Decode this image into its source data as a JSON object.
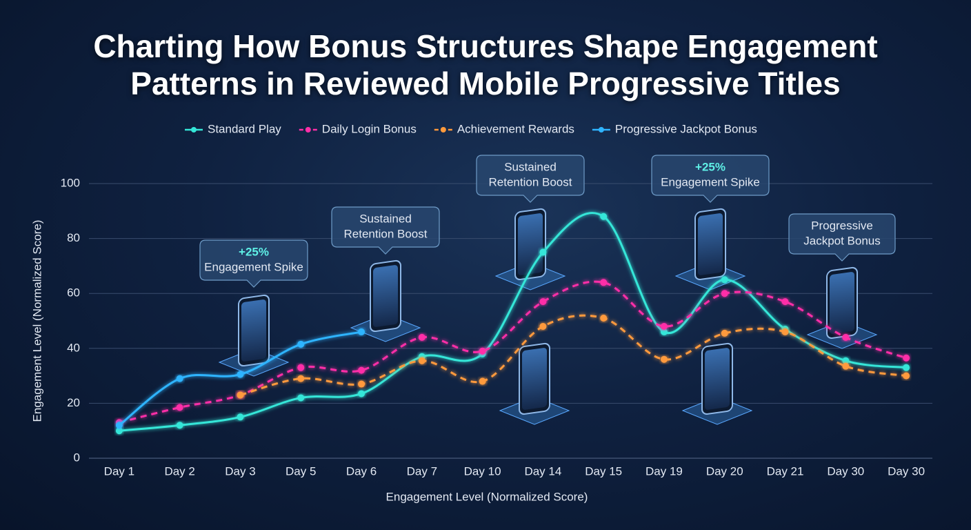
{
  "chart_data": {
    "type": "line",
    "title": "Charting How Bonus Structures Shape Engagement Patterns in Reviewed Mobile Progressive Titles",
    "x_label": "Engagement Level (Normalized Score)",
    "y_label": "Engagement Level (Normalized Score)",
    "categories": [
      "Day 1",
      "Day 2",
      "Day 3",
      "Day 5",
      "Day 6",
      "Day 7",
      "Day 10",
      "Day 14",
      "Day 15",
      "Day 19",
      "Day 20",
      "Day 21",
      "Day 30",
      "Day 30"
    ],
    "ylim": [
      0,
      100
    ],
    "yticks": [
      0,
      20,
      40,
      60,
      80,
      100
    ],
    "grid": true,
    "legend": "top",
    "series": [
      {
        "name": "Standard Play",
        "color": "#34e6d8",
        "dashed": false,
        "values": [
          10,
          12,
          15,
          22,
          23.5,
          37,
          38,
          75,
          88,
          46,
          65,
          47,
          35.5,
          33
        ]
      },
      {
        "name": "Daily Login Bonus",
        "color": "#ff2fa8",
        "dashed": true,
        "values": [
          13,
          18.5,
          23,
          33,
          32,
          44,
          39,
          57,
          64,
          48,
          60,
          57,
          44,
          36.5
        ]
      },
      {
        "name": "Achievement Rewards",
        "color": "#ff9a3c",
        "dashed": true,
        "values": [
          null,
          null,
          23,
          29,
          27,
          35.5,
          28,
          48,
          51,
          36,
          45.5,
          46,
          33.5,
          30
        ]
      },
      {
        "name": "Progressive Jackpot Bonus",
        "color": "#2fb4ff",
        "dashed": false,
        "values": [
          12,
          29,
          30.5,
          41.5,
          46,
          null,
          null,
          null,
          null,
          null,
          null,
          null,
          null,
          null
        ]
      }
    ],
    "annotations": [
      {
        "lines": [
          "+25%",
          "Engagement Spike"
        ]
      },
      {
        "lines": [
          "Sustained",
          "Retention Boost"
        ]
      },
      {
        "lines": [
          "Sustained",
          "Retention Boost"
        ]
      },
      {
        "lines": [
          "+25%",
          "Engagement Spike"
        ]
      },
      {
        "lines": [
          "Progressive",
          "Jackpot Bonus"
        ]
      }
    ]
  }
}
